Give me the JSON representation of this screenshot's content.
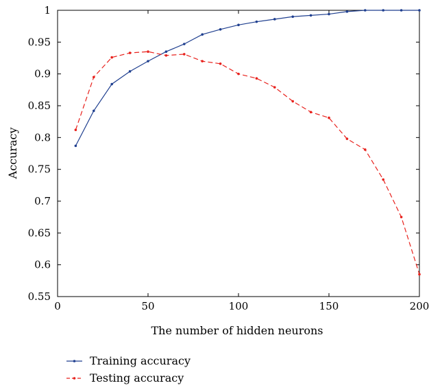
{
  "chart_data": {
    "type": "line",
    "title": "",
    "xlabel": "The number of hidden neurons",
    "ylabel": "Accuracy",
    "xlim": [
      0,
      200
    ],
    "ylim": [
      0.55,
      1
    ],
    "x_ticks": [
      "0",
      "50",
      "100",
      "150",
      "200"
    ],
    "y_ticks": [
      "0.55",
      "0.6",
      "0.65",
      "0.7",
      "0.75",
      "0.8",
      "0.85",
      "0.9",
      "0.95",
      "1"
    ],
    "grid": false,
    "legend_position": "bottom-left",
    "x": [
      10,
      20,
      30,
      40,
      50,
      60,
      70,
      80,
      90,
      100,
      110,
      120,
      130,
      140,
      150,
      160,
      170,
      180,
      190,
      200
    ],
    "series": [
      {
        "name": "Training accuracy",
        "color": "#1f3f8f",
        "line_style": "solid",
        "values": [
          0.787,
          0.842,
          0.884,
          0.904,
          0.92,
          0.935,
          0.947,
          0.962,
          0.97,
          0.977,
          0.982,
          0.986,
          0.99,
          0.992,
          0.994,
          0.998,
          1.0,
          1.0,
          1.0,
          1.0
        ]
      },
      {
        "name": "Testing accuracy",
        "color": "#e8211c",
        "line_style": "dashed",
        "values": [
          0.812,
          0.895,
          0.926,
          0.933,
          0.935,
          0.929,
          0.931,
          0.92,
          0.916,
          0.9,
          0.893,
          0.879,
          0.857,
          0.84,
          0.831,
          0.798,
          0.781,
          0.734,
          0.675,
          0.585
        ]
      }
    ]
  }
}
